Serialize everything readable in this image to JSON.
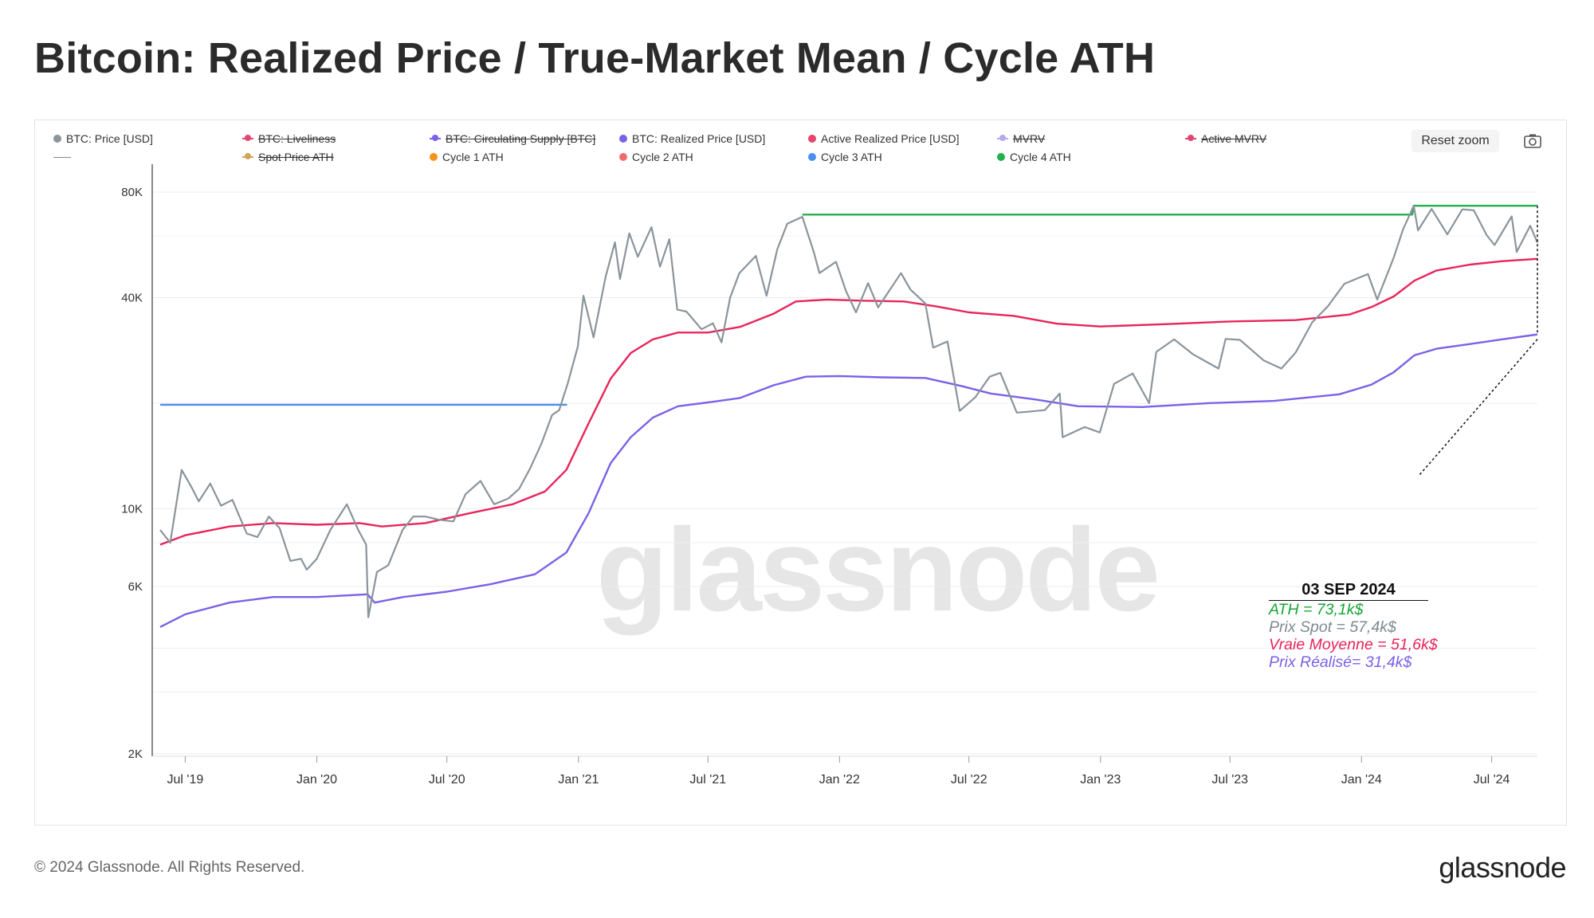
{
  "title": "Bitcoin: Realized Price / True-Market Mean / Cycle ATH",
  "footer": {
    "copyright": "© 2024 Glassnode. All Rights Reserved.",
    "logo_text": "glassnode"
  },
  "watermark": "glassnode",
  "toolbar": {
    "reset_zoom_label": "Reset zoom",
    "camera_icon": "camera-icon"
  },
  "legend": [
    {
      "label": "BTC: Price [USD]",
      "color": "#8a949b",
      "disabled": false
    },
    {
      "label": "BTC: Liveliness",
      "color": "#e3456e",
      "disabled": true
    },
    {
      "label": "BTC: Circulating Supply [BTC]",
      "color": "#7b61e8",
      "disabled": true
    },
    {
      "label": "BTC: Realized Price [USD]",
      "color": "#7b61e8",
      "disabled": false
    },
    {
      "label": "Active Realized Price [USD]",
      "color": "#e3456e",
      "disabled": false
    },
    {
      "label": "MVRV",
      "color": "#b8a8f0",
      "disabled": true
    },
    {
      "label": "Active MVRV",
      "color": "#e3456e",
      "disabled": true
    },
    {
      "label": "Spot Price ATH",
      "color": "#d4a45a",
      "disabled": true
    },
    {
      "label": "Cycle 1 ATH",
      "color": "#f7931a",
      "disabled": false
    },
    {
      "label": "Cycle 2 ATH",
      "color": "#f26b6b",
      "disabled": false
    },
    {
      "label": "Cycle 3 ATH",
      "color": "#4c8df0",
      "disabled": false
    },
    {
      "label": "Cycle 4 ATH",
      "color": "#22b14c",
      "disabled": false
    }
  ],
  "annotation": {
    "date": "03 SEP 2024",
    "lines": [
      {
        "text": "ATH = 73,1k$",
        "color": "#16a535"
      },
      {
        "text": "Prix Spot = 57,4k$",
        "color": "#7d8a91"
      },
      {
        "text": "Vraie Moyenne = 51,6k$",
        "color": "#e8245a"
      },
      {
        "text": "Prix Réalisé= 31,4k$",
        "color": "#7b61e8"
      }
    ]
  },
  "chart_data": {
    "type": "line",
    "y_scale": "log",
    "ylim": [
      2000,
      80000
    ],
    "y_ticks": [
      {
        "value": 80000,
        "label": "80K"
      },
      {
        "value": 40000,
        "label": "40K"
      },
      {
        "value": 10000,
        "label": "10K"
      },
      {
        "value": 6000,
        "label": "6K"
      },
      {
        "value": 2000,
        "label": "2K"
      }
    ],
    "x_ticks": [
      "Jul '19",
      "Jan '20",
      "Jul '20",
      "Jan '21",
      "Jul '21",
      "Jan '22",
      "Jul '22",
      "Jan '23",
      "Jul '23",
      "Jan '24",
      "Jul '24"
    ],
    "xlim": [
      "2019-05-27",
      "2024-09-03"
    ],
    "grid": true,
    "legend_position": "top",
    "series": [
      {
        "name": "BTC: Price [USD]",
        "color": "#8a949b",
        "points": [
          [
            "2019-05-27",
            8700
          ],
          [
            "2019-06-10",
            8000
          ],
          [
            "2019-06-26",
            12900
          ],
          [
            "2019-07-10",
            11500
          ],
          [
            "2019-07-20",
            10500
          ],
          [
            "2019-08-05",
            11800
          ],
          [
            "2019-08-20",
            10200
          ],
          [
            "2019-09-05",
            10600
          ],
          [
            "2019-09-25",
            8500
          ],
          [
            "2019-10-10",
            8300
          ],
          [
            "2019-10-26",
            9500
          ],
          [
            "2019-11-10",
            8800
          ],
          [
            "2019-11-25",
            7100
          ],
          [
            "2019-12-10",
            7200
          ],
          [
            "2019-12-18",
            6700
          ],
          [
            "2020-01-01",
            7200
          ],
          [
            "2020-01-20",
            8700
          ],
          [
            "2020-02-12",
            10300
          ],
          [
            "2020-02-28",
            8700
          ],
          [
            "2020-03-10",
            7900
          ],
          [
            "2020-03-13",
            4900
          ],
          [
            "2020-03-25",
            6600
          ],
          [
            "2020-04-10",
            6900
          ],
          [
            "2020-04-30",
            8700
          ],
          [
            "2020-05-15",
            9500
          ],
          [
            "2020-06-01",
            9500
          ],
          [
            "2020-06-20",
            9300
          ],
          [
            "2020-07-10",
            9200
          ],
          [
            "2020-07-27",
            11000
          ],
          [
            "2020-08-17",
            12000
          ],
          [
            "2020-09-05",
            10300
          ],
          [
            "2020-09-25",
            10700
          ],
          [
            "2020-10-10",
            11400
          ],
          [
            "2020-10-25",
            13000
          ],
          [
            "2020-11-10",
            15300
          ],
          [
            "2020-11-25",
            18500
          ],
          [
            "2020-12-05",
            19100
          ],
          [
            "2020-12-17",
            22800
          ],
          [
            "2020-12-31",
            29000
          ],
          [
            "2021-01-08",
            40500
          ],
          [
            "2021-01-22",
            30800
          ],
          [
            "2021-02-08",
            46000
          ],
          [
            "2021-02-21",
            57500
          ],
          [
            "2021-02-28",
            45200
          ],
          [
            "2021-03-13",
            61000
          ],
          [
            "2021-03-25",
            52300
          ],
          [
            "2021-04-13",
            63500
          ],
          [
            "2021-04-25",
            49000
          ],
          [
            "2021-05-08",
            58700
          ],
          [
            "2021-05-19",
            37000
          ],
          [
            "2021-06-01",
            36500
          ],
          [
            "2021-06-22",
            32500
          ],
          [
            "2021-07-08",
            33800
          ],
          [
            "2021-07-20",
            29800
          ],
          [
            "2021-08-01",
            40000
          ],
          [
            "2021-08-14",
            47000
          ],
          [
            "2021-09-06",
            52600
          ],
          [
            "2021-09-21",
            40500
          ],
          [
            "2021-10-06",
            55000
          ],
          [
            "2021-10-20",
            65000
          ],
          [
            "2021-11-10",
            68000
          ],
          [
            "2021-11-26",
            54000
          ],
          [
            "2021-12-04",
            47000
          ],
          [
            "2021-12-27",
            50600
          ],
          [
            "2022-01-10",
            41800
          ],
          [
            "2022-01-24",
            36300
          ],
          [
            "2022-02-10",
            44000
          ],
          [
            "2022-02-24",
            37500
          ],
          [
            "2022-03-28",
            47000
          ],
          [
            "2022-04-10",
            42200
          ],
          [
            "2022-05-01",
            38500
          ],
          [
            "2022-05-12",
            28800
          ],
          [
            "2022-06-01",
            30000
          ],
          [
            "2022-06-18",
            19000
          ],
          [
            "2022-07-10",
            20800
          ],
          [
            "2022-07-30",
            23800
          ],
          [
            "2022-08-14",
            24400
          ],
          [
            "2022-09-06",
            18800
          ],
          [
            "2022-09-20",
            18900
          ],
          [
            "2022-10-15",
            19100
          ],
          [
            "2022-11-05",
            21300
          ],
          [
            "2022-11-09",
            16000
          ],
          [
            "2022-12-10",
            17100
          ],
          [
            "2022-12-31",
            16500
          ],
          [
            "2023-01-20",
            22700
          ],
          [
            "2023-02-15",
            24300
          ],
          [
            "2023-03-10",
            20000
          ],
          [
            "2023-03-20",
            28000
          ],
          [
            "2023-04-14",
            30400
          ],
          [
            "2023-05-10",
            27600
          ],
          [
            "2023-06-15",
            25100
          ],
          [
            "2023-06-25",
            30500
          ],
          [
            "2023-07-15",
            30300
          ],
          [
            "2023-08-17",
            26500
          ],
          [
            "2023-09-11",
            25100
          ],
          [
            "2023-10-01",
            27900
          ],
          [
            "2023-10-24",
            34000
          ],
          [
            "2023-11-15",
            37800
          ],
          [
            "2023-12-08",
            43800
          ],
          [
            "2024-01-10",
            46700
          ],
          [
            "2024-01-23",
            39500
          ],
          [
            "2024-02-15",
            52000
          ],
          [
            "2024-02-28",
            62500
          ],
          [
            "2024-03-14",
            73100
          ],
          [
            "2024-03-20",
            62200
          ],
          [
            "2024-04-08",
            71600
          ],
          [
            "2024-04-30",
            60600
          ],
          [
            "2024-05-21",
            71400
          ],
          [
            "2024-06-06",
            71000
          ],
          [
            "2024-06-24",
            60300
          ],
          [
            "2024-07-05",
            56500
          ],
          [
            "2024-07-29",
            68200
          ],
          [
            "2024-08-05",
            54000
          ],
          [
            "2024-08-24",
            64100
          ],
          [
            "2024-09-03",
            57400
          ]
        ]
      },
      {
        "name": "Active Realized Price [USD]",
        "color": "#e8245a",
        "points": [
          [
            "2019-05-27",
            7900
          ],
          [
            "2019-07-01",
            8400
          ],
          [
            "2019-09-01",
            8900
          ],
          [
            "2019-11-01",
            9100
          ],
          [
            "2020-01-01",
            9000
          ],
          [
            "2020-03-01",
            9100
          ],
          [
            "2020-04-01",
            8900
          ],
          [
            "2020-06-01",
            9100
          ],
          [
            "2020-08-01",
            9700
          ],
          [
            "2020-10-01",
            10300
          ],
          [
            "2020-11-15",
            11200
          ],
          [
            "2020-12-15",
            12900
          ],
          [
            "2021-01-15",
            17500
          ],
          [
            "2021-02-15",
            23500
          ],
          [
            "2021-03-15",
            27800
          ],
          [
            "2021-04-15",
            30400
          ],
          [
            "2021-05-20",
            31800
          ],
          [
            "2021-07-01",
            31800
          ],
          [
            "2021-08-15",
            33000
          ],
          [
            "2021-10-01",
            36000
          ],
          [
            "2021-11-01",
            39000
          ],
          [
            "2021-12-15",
            39500
          ],
          [
            "2022-02-01",
            39200
          ],
          [
            "2022-04-01",
            39000
          ],
          [
            "2022-05-15",
            37800
          ],
          [
            "2022-07-01",
            36300
          ],
          [
            "2022-09-01",
            35500
          ],
          [
            "2022-11-01",
            33700
          ],
          [
            "2023-01-01",
            33100
          ],
          [
            "2023-04-01",
            33600
          ],
          [
            "2023-07-01",
            34200
          ],
          [
            "2023-10-01",
            34500
          ],
          [
            "2023-12-15",
            35800
          ],
          [
            "2024-01-15",
            37600
          ],
          [
            "2024-02-15",
            40300
          ],
          [
            "2024-03-15",
            44700
          ],
          [
            "2024-04-15",
            47800
          ],
          [
            "2024-06-01",
            49700
          ],
          [
            "2024-07-15",
            50800
          ],
          [
            "2024-09-03",
            51600
          ]
        ]
      },
      {
        "name": "BTC: Realized Price [USD]",
        "color": "#7b61e8",
        "points": [
          [
            "2019-05-27",
            4600
          ],
          [
            "2019-07-01",
            5000
          ],
          [
            "2019-09-01",
            5400
          ],
          [
            "2019-11-01",
            5600
          ],
          [
            "2020-01-01",
            5600
          ],
          [
            "2020-03-12",
            5700
          ],
          [
            "2020-03-22",
            5400
          ],
          [
            "2020-05-01",
            5600
          ],
          [
            "2020-07-01",
            5800
          ],
          [
            "2020-09-01",
            6100
          ],
          [
            "2020-11-01",
            6500
          ],
          [
            "2020-12-15",
            7500
          ],
          [
            "2021-01-15",
            9700
          ],
          [
            "2021-02-15",
            13500
          ],
          [
            "2021-03-15",
            16000
          ],
          [
            "2021-04-15",
            18200
          ],
          [
            "2021-05-20",
            19600
          ],
          [
            "2021-07-01",
            20100
          ],
          [
            "2021-08-15",
            20700
          ],
          [
            "2021-10-01",
            22500
          ],
          [
            "2021-11-15",
            23800
          ],
          [
            "2022-01-01",
            23900
          ],
          [
            "2022-03-01",
            23700
          ],
          [
            "2022-05-01",
            23600
          ],
          [
            "2022-06-20",
            22400
          ],
          [
            "2022-08-01",
            21300
          ],
          [
            "2022-10-01",
            20500
          ],
          [
            "2022-12-01",
            19600
          ],
          [
            "2023-03-01",
            19500
          ],
          [
            "2023-06-01",
            20000
          ],
          [
            "2023-09-01",
            20300
          ],
          [
            "2023-12-01",
            21200
          ],
          [
            "2024-01-15",
            22600
          ],
          [
            "2024-02-15",
            24500
          ],
          [
            "2024-03-15",
            27400
          ],
          [
            "2024-04-15",
            28600
          ],
          [
            "2024-06-01",
            29500
          ],
          [
            "2024-07-15",
            30400
          ],
          [
            "2024-09-03",
            31400
          ]
        ]
      },
      {
        "name": "Cycle 3 ATH",
        "color": "#4c8df0",
        "points": [
          [
            "2019-05-27",
            19800
          ],
          [
            "2020-12-16",
            19800
          ]
        ]
      },
      {
        "name": "Cycle 4 ATH",
        "color": "#22b14c",
        "points": [
          [
            "2021-11-10",
            69000
          ],
          [
            "2024-03-12",
            69000
          ],
          [
            "2024-03-14",
            73100
          ],
          [
            "2024-09-03",
            73100
          ]
        ]
      }
    ]
  }
}
